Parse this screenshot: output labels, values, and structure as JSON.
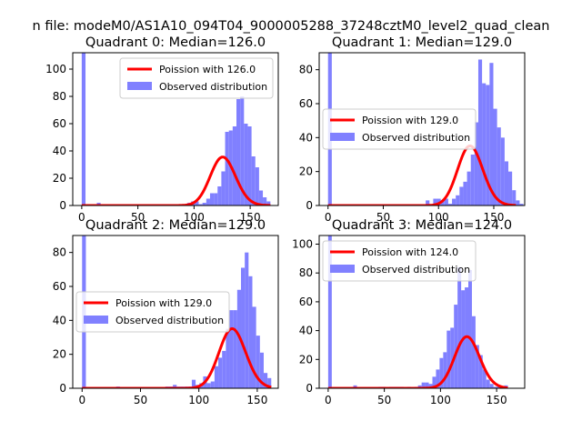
{
  "figure": {
    "suptitle": "n file: modeM0/AS1A10_094T04_9000005288_37248cztM0_level2_quad_clean"
  },
  "colors": {
    "hist_fill": "#8080ff",
    "poisson_line": "#ff0000",
    "axes_edge": "#000000",
    "legend_bg": "#ffffff",
    "legend_edge": "#cccccc"
  },
  "chart_data": [
    {
      "type": "bar",
      "title": "Quadrant 0: Median=126.0",
      "xlim": [
        -8,
        175
      ],
      "ylim": [
        0,
        112
      ],
      "xticks": [
        0,
        50,
        100,
        150
      ],
      "yticks": [
        0,
        20,
        40,
        60,
        80,
        100
      ],
      "legend_placement": "upper right",
      "series": [
        {
          "kind": "line",
          "name": "Poission with 126.0",
          "mean": 126.0,
          "scale": 1000,
          "x_range": [
            0,
            168
          ]
        },
        {
          "kind": "hist",
          "name": "Observed distribution",
          "bin_start": 0,
          "bin_width": 3.36,
          "counts": [
            112,
            0,
            0,
            0,
            2,
            0,
            1,
            0,
            1,
            1,
            0,
            1,
            1,
            0,
            0,
            0,
            1,
            1,
            1,
            1,
            1,
            0,
            0,
            0,
            1,
            0,
            0,
            1,
            2,
            3,
            3,
            1,
            2,
            5,
            9,
            9,
            14,
            25,
            54,
            55,
            58,
            78,
            80,
            60,
            58,
            36,
            28,
            11,
            6,
            3
          ]
        }
      ]
    },
    {
      "type": "bar",
      "title": "Quadrant 1: Median=129.0",
      "xlim": [
        -8,
        178
      ],
      "ylim": [
        0,
        90
      ],
      "xticks": [
        0,
        50,
        100,
        150
      ],
      "yticks": [
        0,
        20,
        40,
        60,
        80
      ],
      "legend_placement": "center left",
      "series": [
        {
          "kind": "line",
          "name": "Poission with 129.0",
          "mean": 129.0,
          "scale": 1000,
          "x_range": [
            0,
            170
          ]
        },
        {
          "kind": "hist",
          "name": "Observed distribution",
          "bin_start": 0,
          "bin_width": 3.4,
          "counts": [
            90,
            0,
            0,
            0,
            0,
            0,
            0,
            0,
            0,
            0,
            0,
            0,
            0,
            0,
            0,
            0,
            0,
            0,
            0,
            0,
            0,
            0,
            0,
            0,
            0,
            0,
            3,
            0,
            4,
            4,
            3,
            4,
            1,
            4,
            6,
            11,
            14,
            20,
            30,
            49,
            86,
            72,
            71,
            84,
            57,
            46,
            40,
            26,
            20,
            9,
            3,
            1
          ]
        }
      ]
    },
    {
      "type": "bar",
      "title": "Quadrant 2: Median=129.0",
      "xlim": [
        -8,
        168
      ],
      "ylim": [
        0,
        90
      ],
      "xticks": [
        0,
        50,
        100,
        150
      ],
      "yticks": [
        0,
        20,
        40,
        60,
        80
      ],
      "legend_placement": "center left",
      "series": [
        {
          "kind": "line",
          "name": "Poission with 129.0",
          "mean": 129.0,
          "scale": 1000,
          "x_range": [
            0,
            162
          ]
        },
        {
          "kind": "hist",
          "name": "Observed distribution",
          "bin_start": 0,
          "bin_width": 3.24,
          "counts": [
            90,
            0,
            0,
            0,
            0,
            0,
            0,
            0,
            0,
            1,
            0,
            0,
            0,
            0,
            0,
            0,
            0,
            0,
            0,
            0,
            0,
            0,
            1,
            1,
            2,
            1,
            1,
            1,
            1,
            5,
            2,
            3,
            7,
            3,
            4,
            13,
            18,
            22,
            35,
            46,
            46,
            58,
            71,
            80,
            66,
            48,
            31,
            21,
            9,
            6
          ]
        }
      ]
    },
    {
      "type": "bar",
      "title": "Quadrant 3: Median=124.0",
      "xlim": [
        -8,
        175
      ],
      "ylim": [
        0,
        106
      ],
      "xticks": [
        0,
        50,
        100,
        150
      ],
      "yticks": [
        0,
        20,
        40,
        60,
        80,
        100
      ],
      "legend_placement": "upper left",
      "series": [
        {
          "kind": "line",
          "name": "Poission with 124.0",
          "mean": 124.0,
          "scale": 1000,
          "x_range": [
            0,
            160
          ]
        },
        {
          "kind": "hist",
          "name": "Observed distribution",
          "bin_start": 0,
          "bin_width": 3.2,
          "counts": [
            106,
            0,
            0,
            0,
            0,
            0,
            0,
            2,
            0,
            0,
            0,
            0,
            0,
            0,
            1,
            1,
            0,
            1,
            1,
            1,
            1,
            0,
            1,
            0,
            1,
            2,
            4,
            4,
            3,
            8,
            13,
            21,
            25,
            40,
            42,
            58,
            84,
            68,
            70,
            82,
            50,
            30,
            23,
            13,
            6,
            3,
            1,
            2,
            1,
            2
          ]
        }
      ]
    }
  ]
}
